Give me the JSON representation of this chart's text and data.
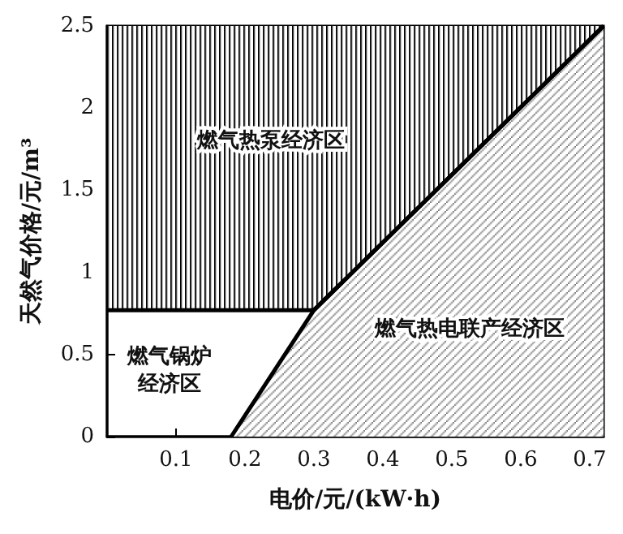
{
  "chart_data": {
    "type": "area",
    "xlabel": "电价/元/(kW·h)",
    "ylabel": "天然气价格/元/m³",
    "xlim": [
      0,
      0.72
    ],
    "ylim": [
      0,
      2.5
    ],
    "xticks": [
      0.1,
      0.2,
      0.3,
      0.4,
      0.5,
      0.6,
      0.7
    ],
    "yticks": [
      0,
      0.5,
      1,
      1.5,
      2,
      2.5
    ],
    "series": [
      {
        "type": "line",
        "color": "#000000",
        "x": [
          0,
          0.3,
          0.72
        ],
        "values": [
          0.77,
          0.77,
          2.5
        ],
        "lower": [
          0.77,
          0.77,
          2.5
        ],
        "upper": [
          2.5,
          2.5,
          2.5
        ]
      },
      {
        "color": "#777777",
        "x": [
          0.18,
          0.3,
          0.72
        ],
        "values": [
          0,
          0.77,
          2.5
        ]
      }
    ],
    "annotations": [
      "燃气热泵经济区",
      "燃气锅炉经济区",
      "燃气热电联产经济区"
    ],
    "grid": false
  }
}
